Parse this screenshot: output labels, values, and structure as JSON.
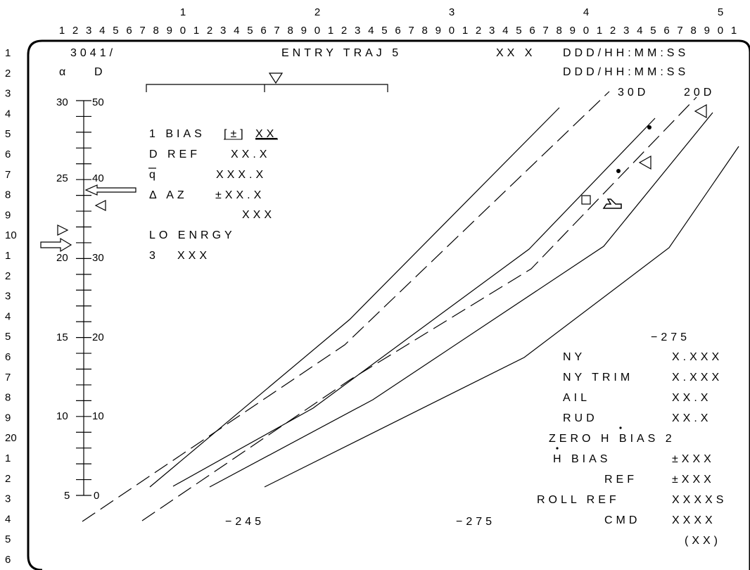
{
  "ruler": {
    "tens": [
      "1",
      "2",
      "3",
      "4",
      "5"
    ],
    "columns": [
      "1",
      "2",
      "3",
      "4",
      "5",
      "6",
      "7",
      "8",
      "9",
      "0",
      "1",
      "2",
      "3",
      "4",
      "5",
      "6",
      "7",
      "8",
      "9",
      "0",
      "1",
      "2",
      "3",
      "4",
      "5",
      "6",
      "7",
      "8",
      "9",
      "0",
      "1",
      "2",
      "3",
      "4",
      "5",
      "6",
      "7",
      "8",
      "9",
      "0",
      "1",
      "2",
      "3",
      "4",
      "5",
      "6",
      "7",
      "8",
      "9",
      "0",
      "1"
    ],
    "rows": [
      "1",
      "2",
      "3",
      "4",
      "5",
      "6",
      "7",
      "8",
      "9",
      "10",
      "1",
      "2",
      "3",
      "4",
      "5",
      "6",
      "7",
      "8",
      "9",
      "20",
      "1",
      "2",
      "3",
      "4",
      "5",
      "6"
    ]
  },
  "header": {
    "display_id": "3041/",
    "title": "ENTRY TRAJ 5",
    "flags": "XX X",
    "time1": "DDD/HH:MM:SS",
    "time2": "DDD/HH:MM:SS",
    "alpha_label": "α",
    "d_label": "D",
    "range_30d": "30D",
    "range_20d": "20D"
  },
  "scale": {
    "alpha_labels": [
      "30",
      "25",
      "20",
      "15",
      "10",
      "5"
    ],
    "d_labels": [
      "50",
      "40",
      "30",
      "20",
      "10",
      "0"
    ]
  },
  "left_panel": {
    "bias_line": "1 BIAS",
    "bias_sign": "[±]",
    "bias_value": "XX",
    "dref_label": "D REF",
    "dref_value": "XX.X",
    "qbar_label": "q",
    "qbar_value": "XXX.X",
    "daz_label": "Δ AZ",
    "daz_value": "±XX.X",
    "unlabeled_value": "XXX",
    "lo_energy": "LO ENRGY",
    "item3_label": "3",
    "item3_value": "XXX"
  },
  "plot_labels": {
    "v245": "−245",
    "v275_bottom": "−275",
    "v275_right": "−275"
  },
  "right_panel": {
    "ny_label": "NY",
    "ny_value": "X.XXX",
    "nytrim_label": "NY TRIM",
    "nytrim_value": "X.XXX",
    "ail_label": "AIL",
    "ail_value": "XX.X",
    "rud_label": "RUD",
    "rud_value": "XX.X",
    "zero_hdot_bias": "ZERO H BIAS 2",
    "hdot_bias_label": "H BIAS",
    "hdot_bias_value": "±XXX",
    "ref_label": "REF",
    "ref_value": "±XXX",
    "roll_ref_label": "ROLL REF",
    "roll_ref_value": "XXXXS",
    "cmd_label": "CMD",
    "cmd_value": "XXXX",
    "paren_value": "(XX)"
  }
}
